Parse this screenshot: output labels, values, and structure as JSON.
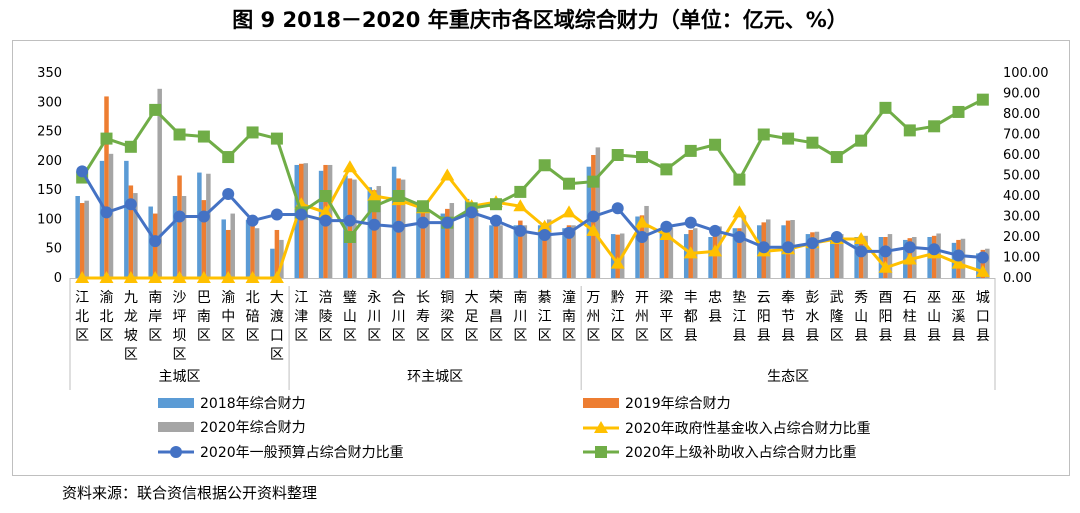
{
  "title": "图 9 2018－2020 年重庆市各区域综合财力（单位：亿元、%）",
  "source": "资料来源：联合资信根据公开资料整理",
  "chart_data": {
    "type": "bar",
    "left_axis": {
      "min": 0,
      "max": 350,
      "step": 50,
      "ticks": [
        "0",
        "50",
        "100",
        "150",
        "200",
        "250",
        "300",
        "350"
      ]
    },
    "right_axis": {
      "min": 0,
      "max": 100,
      "step": 10,
      "ticks": [
        "0.00",
        "10.00",
        "20.00",
        "30.00",
        "40.00",
        "50.00",
        "60.00",
        "70.00",
        "80.00",
        "90.00",
        "100.00"
      ]
    },
    "categories": [
      "江北区",
      "渝北区",
      "九龙坡区",
      "南岸区",
      "沙坪坝区",
      "巴南区",
      "渝中区",
      "北碚区",
      "大渡口区",
      "江津区",
      "涪陵区",
      "璧山区",
      "永川区",
      "合川区",
      "长寿区",
      "铜梁区",
      "大足区",
      "荣昌区",
      "南川区",
      "綦江区",
      "潼南区",
      "万州区",
      "黔江区",
      "开州区",
      "梁平区",
      "丰都县",
      "忠县",
      "垫江县",
      "云阳县",
      "奉节县",
      "彭水县",
      "武隆区",
      "秀山县",
      "酉阳县",
      "石柱县",
      "巫山县",
      "巫溪县",
      "城口县"
    ],
    "groups": [
      {
        "label": "主城区",
        "from": 0,
        "to": 8
      },
      {
        "label": "环主城区",
        "from": 9,
        "to": 20
      },
      {
        "label": "生态区",
        "from": 21,
        "to": 37
      }
    ],
    "bar_series": [
      {
        "name": "2018年综合财力",
        "color": "#5B9BD5",
        "axis": "left",
        "values": [
          140,
          200,
          200,
          122,
          140,
          180,
          100,
          99,
          50,
          193,
          183,
          175,
          155,
          190,
          130,
          110,
          135,
          90,
          90,
          90,
          85,
          190,
          75,
          105,
          80,
          75,
          70,
          85,
          90,
          90,
          75,
          65,
          70,
          70,
          65,
          70,
          60,
          42
        ]
      },
      {
        "name": "2019年综合财力",
        "color": "#ED7D31",
        "axis": "left",
        "values": [
          128,
          310,
          158,
          110,
          175,
          133,
          82,
          100,
          82,
          195,
          193,
          170,
          150,
          170,
          120,
          118,
          110,
          95,
          98,
          94,
          90,
          210,
          74,
          107,
          82,
          82,
          80,
          85,
          95,
          98,
          78,
          78,
          70,
          70,
          68,
          72,
          65,
          48
        ]
      },
      {
        "name": "2020年综合财力",
        "color": "#A5A5A5",
        "axis": "left",
        "values": [
          132,
          212,
          145,
          323,
          140,
          178,
          110,
          85,
          65,
          196,
          193,
          168,
          157,
          168,
          115,
          128,
          115,
          90,
          90,
          100,
          90,
          223,
          76,
          123,
          86,
          85,
          88,
          107,
          100,
          99,
          79,
          75,
          72,
          75,
          70,
          76,
          67,
          50
        ]
      }
    ],
    "line_series": [
      {
        "name": "2020年政府性基金收入占综合财力比重",
        "color": "#FFC000",
        "marker": "triangle",
        "axis": "right",
        "values": [
          0,
          0,
          0,
          0,
          0,
          0,
          0,
          0,
          0,
          36,
          32,
          54,
          40,
          38,
          34,
          50,
          35,
          37,
          35,
          25,
          32,
          23,
          7,
          27,
          21,
          12,
          13,
          32,
          13,
          14,
          17,
          19,
          19,
          5,
          9,
          12,
          7,
          3
        ]
      },
      {
        "name": "2020年一般预算占综合财力比重",
        "color": "#4472C4",
        "marker": "circle",
        "axis": "right",
        "values": [
          52,
          32,
          36,
          18,
          30,
          30,
          41,
          28,
          31,
          31,
          28,
          28,
          26,
          25,
          27,
          27,
          32,
          28,
          23,
          21,
          22,
          30,
          34,
          20,
          25,
          27,
          23,
          20,
          15,
          15,
          17,
          20,
          13,
          13,
          15,
          14,
          11,
          10
        ]
      },
      {
        "name": "2020年上级补助收入占综合财力比重",
        "color": "#70AD47",
        "marker": "square",
        "axis": "right",
        "values": [
          49,
          68,
          64,
          82,
          70,
          69,
          59,
          71,
          68,
          32,
          40,
          20,
          35,
          40,
          35,
          27,
          34,
          36,
          42,
          55,
          46,
          47,
          60,
          59,
          53,
          62,
          65,
          48,
          70,
          68,
          66,
          59,
          67,
          83,
          72,
          74,
          81,
          87
        ]
      }
    ],
    "legend_position": "bottom",
    "grid": false
  }
}
